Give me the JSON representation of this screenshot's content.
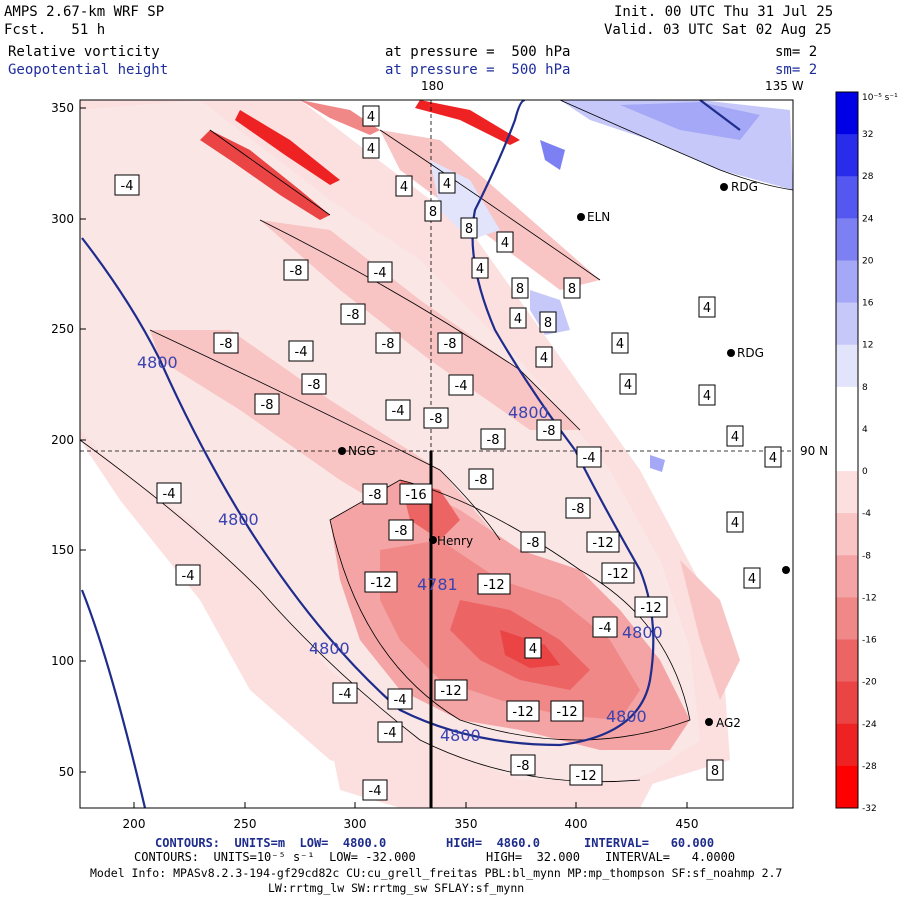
{
  "header": {
    "model": "AMPS 2.67-km WRF SP",
    "fcst": "Fcst.   51 h",
    "init": "Init. 00 UTC Thu 31 Jul 25",
    "valid": "Valid. 03 UTC Sat 02 Aug 25",
    "field1_name": "Relative vorticity",
    "field1_level": "at pressure =  500 hPa",
    "field1_sm": "sm= 2",
    "field2_name": "Geopotential height",
    "field2_level": "at pressure =  500 hPa",
    "field2_sm": "sm= 2"
  },
  "map_labels": {
    "lon_180": "180",
    "lon_135w": "135 W",
    "lat_90n": "90 N",
    "stations": [
      "NGG",
      "Henry",
      "RDG",
      "ELN",
      "AG2",
      "RDG"
    ]
  },
  "axes": {
    "x_ticks": [
      "200",
      "250",
      "300",
      "350",
      "400",
      "450"
    ],
    "y_ticks": [
      "350",
      "300",
      "250",
      "200",
      "150",
      "100",
      "50"
    ]
  },
  "colorbar": {
    "unit": "10⁻⁵ s⁻¹",
    "labels": [
      "32",
      "28",
      "24",
      "20",
      "16",
      "12",
      "8",
      "4",
      "0",
      "-4",
      "-8",
      "-12",
      "-16",
      "-20",
      "-24",
      "-28",
      "-32"
    ],
    "colors": [
      "#0000e6",
      "#2a2cec",
      "#5458f0",
      "#7c80f2",
      "#a4a8f6",
      "#c6c8fa",
      "#e2e4fc",
      "#ffffff",
      "#ffffff",
      "#fce0e0",
      "#f8c4c4",
      "#f4a4a4",
      "#f08888",
      "#ec6464",
      "#ea4444",
      "#ee2222",
      "#ff0000"
    ]
  },
  "height_labels": [
    "4800",
    "4800",
    "4800",
    "4800",
    "4800",
    "4800",
    "4800",
    "4781"
  ],
  "vort_labels": [
    "-4",
    "-4",
    "-4",
    "-4",
    "-4",
    "-4",
    "-4",
    "-4",
    "-4",
    "-4",
    "-4",
    "-4",
    "-4",
    "-8",
    "-8",
    "-8",
    "-8",
    "-8",
    "-8",
    "-8",
    "-8",
    "-8",
    "-8",
    "-8",
    "-8",
    "-8",
    "-8",
    "-8",
    "-8",
    "-12",
    "-12",
    "-12",
    "-12",
    "-12",
    "-12",
    "-12",
    "-12",
    "-12",
    "-16",
    "4",
    "4",
    "4",
    "4",
    "4",
    "4",
    "4",
    "4",
    "4",
    "4",
    "4",
    "4",
    "4",
    "4",
    "4",
    "4",
    "4",
    "8",
    "8",
    "8",
    "8",
    "8",
    "8"
  ],
  "footer": {
    "line1_a": "CONTOURS:  UNITS=m  LOW=  4800.0",
    "line1_b": "HIGH=  4860.0",
    "line1_c": "INTERVAL=   60.000",
    "line2_a": "CONTOURS:  UNITS=10⁻⁵ s⁻¹  LOW= -32.000",
    "line2_b": "HIGH=  32.000",
    "line2_c": "INTERVAL=   4.0000",
    "line3": "Model Info: MPASv8.2.3-194-gf29cd82c CU:cu_grell_freitas PBL:bl_mynn MP:mp_thompson SF:sf_noahmp 2.7",
    "line4": "LW:rrtmg_lw SW:rrtmg_sw SFLAY:sf_mynn"
  }
}
